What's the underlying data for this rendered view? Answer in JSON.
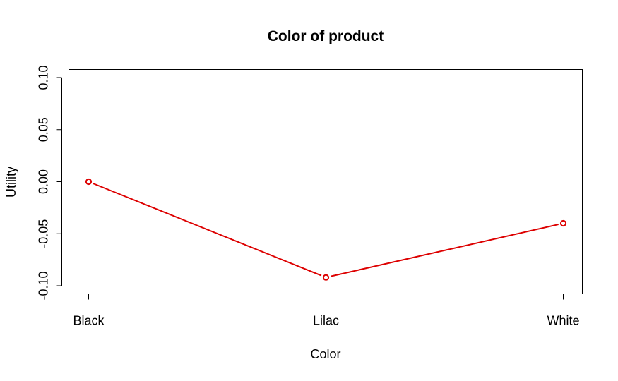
{
  "chart_data": {
    "type": "line",
    "title": "Color of product",
    "xlabel": "Color",
    "ylabel": "Utility",
    "categories": [
      "Black",
      "Lilac",
      "White"
    ],
    "values": [
      0.0,
      -0.092,
      -0.04
    ],
    "ylim": [
      -0.11,
      0.11
    ],
    "yticks": [
      -0.1,
      -0.05,
      0.0,
      0.05,
      0.1
    ],
    "ytick_labels": [
      "-0.10",
      "-0.05",
      "0.00",
      "0.05",
      "0.10"
    ],
    "grid": false,
    "legend": "none",
    "line_color": "#dd0000",
    "marker": "open-circle"
  }
}
